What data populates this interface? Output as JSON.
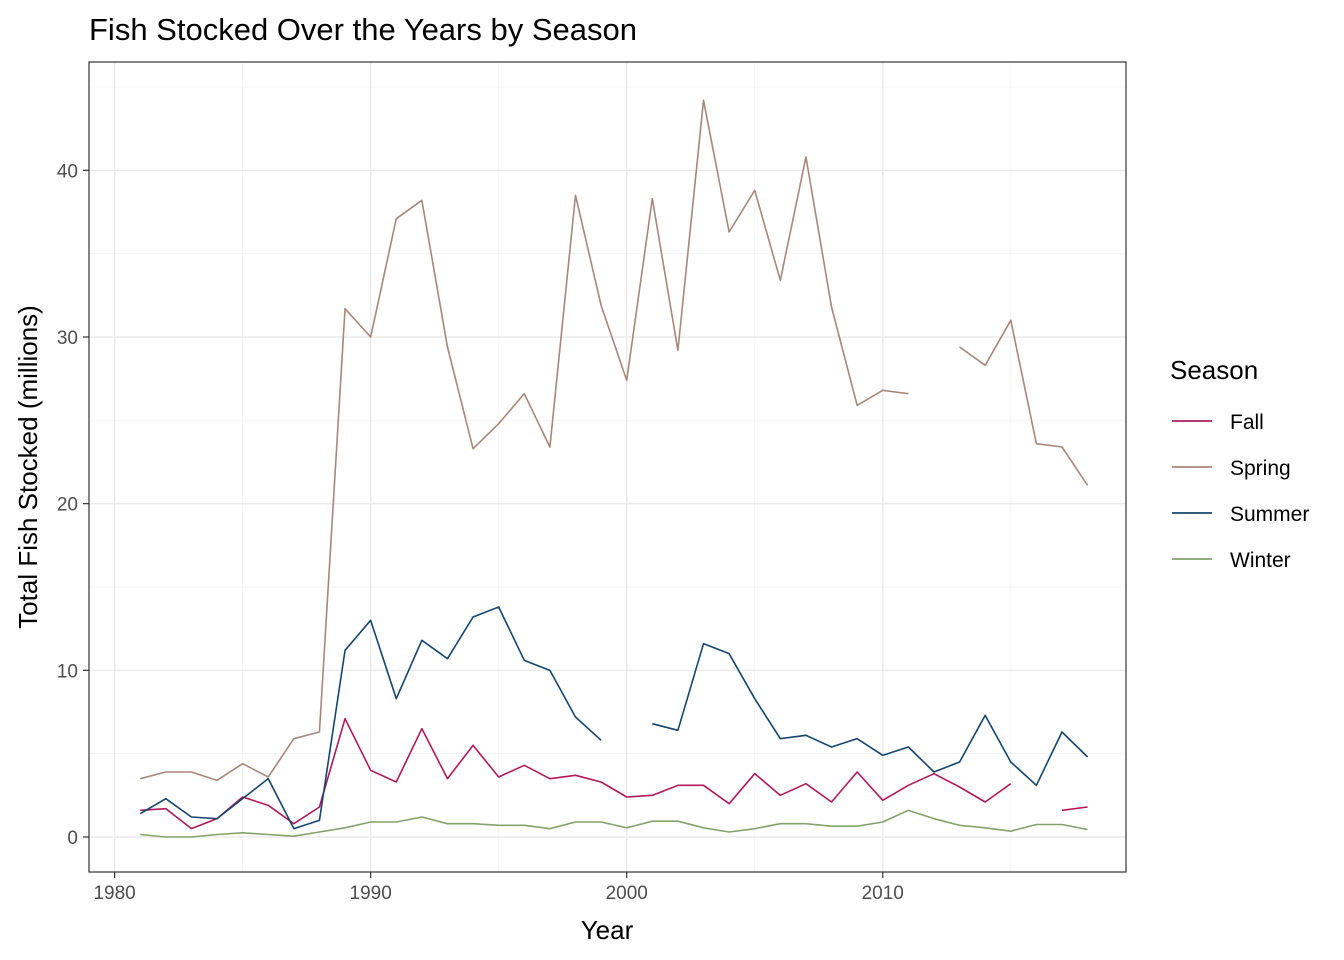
{
  "chart_data": {
    "type": "line",
    "title": "Fish Stocked Over the Years by Season",
    "xlabel": "Year",
    "ylabel": "Total Fish Stocked (millions)",
    "xlim": [
      1979,
      2019.5
    ],
    "ylim": [
      -2.1,
      46.5
    ],
    "x_ticks": [
      1980,
      1990,
      2000,
      2010
    ],
    "x_tick_labels": [
      "1980",
      "1990",
      "2000",
      "2010"
    ],
    "y_ticks": [
      0,
      10,
      20,
      30,
      40
    ],
    "y_tick_labels": [
      "0",
      "10",
      "20",
      "30",
      "40"
    ],
    "grid": true,
    "legend_title": "Season",
    "legend_position": "right",
    "series": [
      {
        "name": "Fall",
        "color": "#b0195b",
        "points": [
          [
            1981,
            1.6
          ],
          [
            1982,
            1.7
          ],
          [
            1983,
            0.5
          ],
          [
            1984,
            1.1
          ],
          [
            1985,
            2.4
          ],
          [
            1986,
            1.9
          ],
          [
            1987,
            0.8
          ],
          [
            1988,
            1.8
          ],
          [
            1989,
            7.1
          ],
          [
            1990,
            4.0
          ],
          [
            1991,
            3.3
          ],
          [
            1992,
            6.5
          ],
          [
            1993,
            3.5
          ],
          [
            1994,
            5.5
          ],
          [
            1995,
            3.6
          ],
          [
            1996,
            4.3
          ],
          [
            1997,
            3.5
          ],
          [
            1998,
            3.7
          ],
          [
            1999,
            3.3
          ],
          [
            2000,
            2.4
          ],
          [
            2001,
            2.5
          ],
          [
            2002,
            3.1
          ],
          [
            2003,
            3.1
          ],
          [
            2004,
            2.0
          ],
          [
            2005,
            3.8
          ],
          [
            2006,
            2.5
          ],
          [
            2007,
            3.2
          ],
          [
            2008,
            2.1
          ],
          [
            2009,
            3.9
          ],
          [
            2010,
            2.2
          ],
          [
            2011,
            3.1
          ],
          [
            2012,
            3.8
          ],
          [
            2013,
            3.0
          ],
          [
            2014,
            2.1
          ],
          [
            2015,
            3.2
          ],
          null,
          [
            2017,
            1.6
          ],
          [
            2018,
            1.8
          ]
        ]
      },
      {
        "name": "Spring",
        "color": "#a8877a",
        "points": [
          [
            1981,
            3.5
          ],
          [
            1982,
            3.9
          ],
          [
            1983,
            3.9
          ],
          [
            1984,
            3.4
          ],
          [
            1985,
            4.4
          ],
          [
            1986,
            3.6
          ],
          [
            1987,
            5.9
          ],
          [
            1988,
            6.3
          ],
          [
            1989,
            31.7
          ],
          [
            1990,
            30.0
          ],
          [
            1991,
            37.1
          ],
          [
            1992,
            38.2
          ],
          [
            1993,
            29.4
          ],
          [
            1994,
            23.3
          ],
          [
            1995,
            24.8
          ],
          [
            1996,
            26.6
          ],
          [
            1997,
            23.4
          ],
          [
            1998,
            38.5
          ],
          [
            1999,
            31.9
          ],
          [
            2000,
            27.4
          ],
          [
            2001,
            38.3
          ],
          [
            2002,
            29.2
          ],
          [
            2003,
            44.2
          ],
          [
            2004,
            36.3
          ],
          [
            2005,
            38.8
          ],
          [
            2006,
            33.4
          ],
          [
            2007,
            40.8
          ],
          [
            2008,
            31.8
          ],
          [
            2009,
            25.9
          ],
          [
            2010,
            26.8
          ],
          [
            2011,
            26.6
          ],
          null,
          [
            2013,
            29.4
          ],
          [
            2014,
            28.3
          ],
          [
            2015,
            31.0
          ],
          [
            2016,
            23.6
          ],
          [
            2017,
            23.4
          ],
          [
            2018,
            21.1
          ]
        ]
      },
      {
        "name": "Summer",
        "color": "#14466f",
        "points": [
          [
            1981,
            1.4
          ],
          [
            1982,
            2.3
          ],
          [
            1983,
            1.2
          ],
          [
            1984,
            1.1
          ],
          [
            1985,
            2.3
          ],
          [
            1986,
            3.5
          ],
          [
            1987,
            0.5
          ],
          [
            1988,
            1.0
          ],
          [
            1989,
            11.2
          ],
          [
            1990,
            13.0
          ],
          [
            1991,
            8.3
          ],
          [
            1992,
            11.8
          ],
          [
            1993,
            10.7
          ],
          [
            1994,
            13.2
          ],
          [
            1995,
            13.8
          ],
          [
            1996,
            10.6
          ],
          [
            1997,
            10.0
          ],
          [
            1998,
            7.2
          ],
          [
            1999,
            5.8
          ],
          null,
          [
            2001,
            6.8
          ],
          [
            2002,
            6.4
          ],
          [
            2003,
            11.6
          ],
          [
            2004,
            11.0
          ],
          [
            2005,
            8.3
          ],
          [
            2006,
            5.9
          ],
          [
            2007,
            6.1
          ],
          [
            2008,
            5.4
          ],
          [
            2009,
            5.9
          ],
          [
            2010,
            4.9
          ],
          [
            2011,
            5.4
          ],
          [
            2012,
            3.9
          ],
          [
            2013,
            4.5
          ],
          [
            2014,
            7.3
          ],
          [
            2015,
            4.5
          ],
          [
            2016,
            3.1
          ],
          [
            2017,
            6.3
          ],
          [
            2018,
            4.8
          ]
        ]
      },
      {
        "name": "Winter",
        "color": "#82a36b",
        "points": [
          [
            1981,
            0.15
          ],
          [
            1982,
            0.0
          ],
          [
            1983,
            0.0
          ],
          [
            1984,
            0.15
          ],
          [
            1985,
            0.25
          ],
          [
            1986,
            0.15
          ],
          [
            1987,
            0.05
          ],
          [
            1988,
            0.3
          ],
          [
            1989,
            0.55
          ],
          [
            1990,
            0.9
          ],
          [
            1991,
            0.9
          ],
          [
            1992,
            1.2
          ],
          [
            1993,
            0.8
          ],
          [
            1994,
            0.8
          ],
          [
            1995,
            0.7
          ],
          [
            1996,
            0.7
          ],
          [
            1997,
            0.5
          ],
          [
            1998,
            0.9
          ],
          [
            1999,
            0.9
          ],
          [
            2000,
            0.55
          ],
          [
            2001,
            0.95
          ],
          [
            2002,
            0.95
          ],
          [
            2003,
            0.55
          ],
          [
            2004,
            0.3
          ],
          [
            2005,
            0.5
          ],
          [
            2006,
            0.8
          ],
          [
            2007,
            0.8
          ],
          [
            2008,
            0.65
          ],
          [
            2009,
            0.65
          ],
          [
            2010,
            0.9
          ],
          [
            2011,
            1.6
          ],
          [
            2012,
            1.1
          ],
          [
            2013,
            0.7
          ],
          [
            2014,
            0.55
          ],
          [
            2015,
            0.35
          ],
          [
            2016,
            0.75
          ],
          [
            2017,
            0.75
          ],
          [
            2018,
            0.45
          ]
        ]
      }
    ]
  }
}
